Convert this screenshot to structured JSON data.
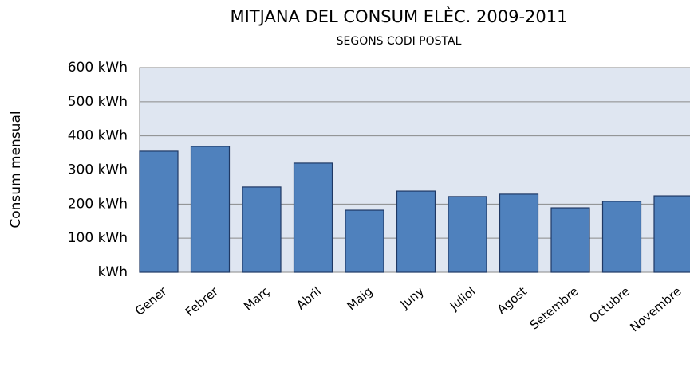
{
  "chart_data": {
    "type": "bar",
    "title": "MITJANA DEL CONSUM ELÈC. 2009-2011",
    "subtitle": "SEGONS CODI POSTAL",
    "y_label": "Consum mensual",
    "categories": [
      "Gener",
      "Febrer",
      "Març",
      "Abril",
      "Maig",
      "Juny",
      "Juliol",
      "Agost",
      "Setembre",
      "Octubre",
      "Novembre"
    ],
    "values": [
      355,
      369,
      250,
      320,
      182,
      238,
      222,
      229,
      189,
      208,
      224
    ],
    "color": "#4f81bd",
    "ylim": [
      0,
      600
    ],
    "yticks": [
      {
        "value": 0,
        "label": "kWh"
      },
      {
        "value": 100,
        "label": "100 kWh"
      },
      {
        "value": 200,
        "label": "200 kWh"
      },
      {
        "value": 300,
        "label": "300 kWh"
      },
      {
        "value": 400,
        "label": "400 kWh"
      },
      {
        "value": 500,
        "label": "500 kWh"
      },
      {
        "value": 600,
        "label": "600 kWh"
      }
    ],
    "grid": true
  }
}
